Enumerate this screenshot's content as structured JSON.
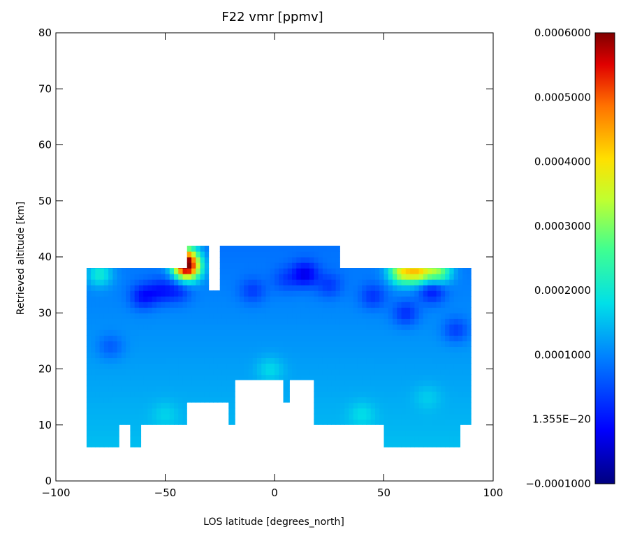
{
  "chart_data": {
    "type": "heatmap",
    "title": "F22 vmr [ppmv]",
    "xlabel": "LOS latitude [degrees_north]",
    "ylabel": "Retrieved altitude [km]",
    "xlim": [
      -100,
      100
    ],
    "ylim": [
      0,
      80
    ],
    "x_ticks": [
      -100,
      -50,
      0,
      50,
      100
    ],
    "y_ticks": [
      0,
      10,
      20,
      30,
      40,
      50,
      60,
      70,
      80
    ],
    "x_tick_labels": [
      "−100",
      "−50",
      "0",
      "50",
      "100"
    ],
    "y_tick_labels": [
      "0",
      "10",
      "20",
      "30",
      "40",
      "50",
      "60",
      "70",
      "80"
    ],
    "colorbar": {
      "colormap": "rainbow",
      "range": [
        -0.0001,
        0.0006
      ],
      "tick_values": [
        0.0006,
        0.0005,
        0.0004,
        0.0003,
        0.0002,
        0.0001,
        1.355e-20,
        -0.0001
      ],
      "tick_labels": [
        "0.0006000",
        "0.0005000",
        "0.0004000",
        "0.0003000",
        "0.0002000",
        "0.0001000",
        "1.355E−20",
        "−0.0001000"
      ]
    },
    "coverage_columns": [
      {
        "lon": [
          -86,
          -71
        ],
        "alt": [
          6,
          38
        ]
      },
      {
        "lon": [
          -71,
          -66
        ],
        "alt": [
          10,
          38
        ]
      },
      {
        "lon": [
          -66,
          -61
        ],
        "alt": [
          6,
          38
        ]
      },
      {
        "lon": [
          -61,
          -50
        ],
        "alt": [
          10,
          38
        ]
      },
      {
        "lon": [
          -50,
          -46
        ],
        "alt": [
          10,
          38
        ]
      },
      {
        "lon": [
          -46,
          -40
        ],
        "alt": [
          10,
          38
        ]
      },
      {
        "lon": [
          -40,
          -36
        ],
        "alt": [
          14,
          42
        ]
      },
      {
        "lon": [
          -36,
          -30
        ],
        "alt": [
          14,
          42
        ]
      },
      {
        "lon": [
          -30,
          -25
        ],
        "alt": [
          14,
          34
        ]
      },
      {
        "lon": [
          -25,
          -21
        ],
        "alt": [
          14,
          42
        ]
      },
      {
        "lon": [
          -21,
          -18
        ],
        "alt": [
          10,
          42
        ]
      },
      {
        "lon": [
          -18,
          -10
        ],
        "alt": [
          18,
          42
        ]
      },
      {
        "lon": [
          -10,
          2
        ],
        "alt": [
          18,
          42
        ]
      },
      {
        "lon": [
          2,
          4
        ],
        "alt": [
          18,
          42
        ]
      },
      {
        "lon": [
          4,
          7
        ],
        "alt": [
          14,
          42
        ]
      },
      {
        "lon": [
          7,
          18
        ],
        "alt": [
          18,
          42
        ]
      },
      {
        "lon": [
          18,
          25
        ],
        "alt": [
          10,
          42
        ]
      },
      {
        "lon": [
          25,
          30
        ],
        "alt": [
          10,
          42
        ]
      },
      {
        "lon": [
          30,
          50
        ],
        "alt": [
          10,
          38
        ]
      },
      {
        "lon": [
          50,
          65
        ],
        "alt": [
          6,
          38
        ]
      },
      {
        "lon": [
          65,
          85
        ],
        "alt": [
          6,
          38
        ]
      },
      {
        "lon": [
          85,
          90
        ],
        "alt": [
          10,
          38
        ]
      }
    ],
    "values_note_free_field": [
      {
        "lat": -40,
        "alt": 38,
        "v": 0.00055
      },
      {
        "lat": -41,
        "alt": 40,
        "v": 0.00045
      },
      {
        "lat": 58,
        "alt": 37.5,
        "v": 0.0004
      },
      {
        "lat": 66,
        "alt": 37.5,
        "v": 0.00042
      },
      {
        "lat": 75,
        "alt": 37.5,
        "v": 0.00035
      },
      {
        "lat": -80,
        "alt": 37,
        "v": 0.00026
      },
      {
        "lat": -60,
        "alt": 33,
        "v": 5e-05
      },
      {
        "lat": -52,
        "alt": 34,
        "v": 7e-05
      },
      {
        "lat": -44,
        "alt": 34,
        "v": 8e-05
      },
      {
        "lat": 14,
        "alt": 37,
        "v": 3e-05
      },
      {
        "lat": -10,
        "alt": 34,
        "v": 9e-05
      },
      {
        "lat": 5,
        "alt": 36,
        "v": 0.0001
      },
      {
        "lat": 25,
        "alt": 35,
        "v": 9e-05
      },
      {
        "lat": 45,
        "alt": 33,
        "v": 8e-05
      },
      {
        "lat": 60,
        "alt": 30,
        "v": 7e-05
      },
      {
        "lat": 72,
        "alt": 34,
        "v": 5e-05
      },
      {
        "lat": 83,
        "alt": 27,
        "v": 8e-05
      },
      {
        "lat": -75,
        "alt": 24,
        "v": 0.0001
      },
      {
        "lat": -2,
        "alt": 20,
        "v": 0.0002
      },
      {
        "lat": 70,
        "alt": 15,
        "v": 0.00018
      },
      {
        "lat": -50,
        "alt": 12,
        "v": 0.00018
      },
      {
        "lat": 40,
        "alt": 12,
        "v": 0.00019
      }
    ],
    "background_value": 0.00015
  }
}
